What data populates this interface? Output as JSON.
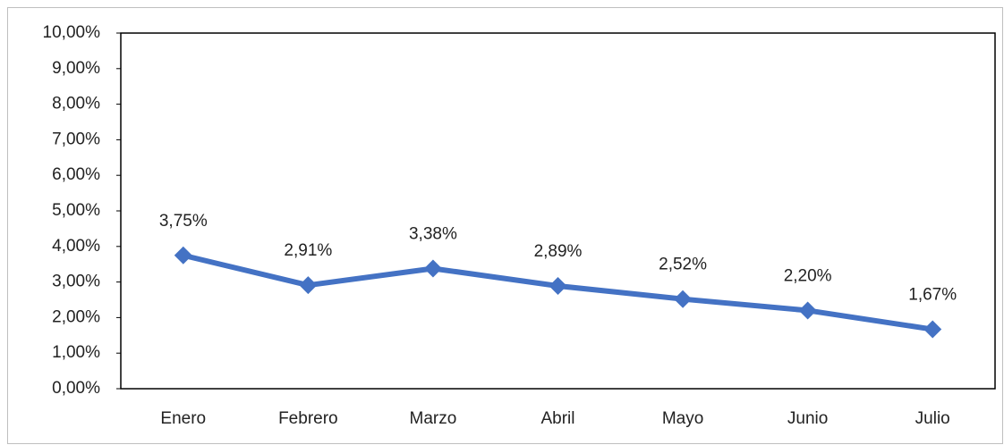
{
  "chart_data": {
    "type": "line",
    "categories": [
      "Enero",
      "Febrero",
      "Marzo",
      "Abril",
      "Mayo",
      "Junio",
      "Julio"
    ],
    "values": [
      3.75,
      2.91,
      3.38,
      2.89,
      2.52,
      2.2,
      1.67
    ],
    "value_labels": [
      "3,75%",
      "2,91%",
      "3,38%",
      "2,89%",
      "2,52%",
      "2,20%",
      "1,67%"
    ],
    "color": "#4472c4",
    "ylim": [
      0,
      10
    ],
    "yticks": [
      {
        "value": 0,
        "label": "0,00%"
      },
      {
        "value": 1,
        "label": "1,00%"
      },
      {
        "value": 2,
        "label": "2,00%"
      },
      {
        "value": 3,
        "label": "3,00%"
      },
      {
        "value": 4,
        "label": "4,00%"
      },
      {
        "value": 5,
        "label": "5,00%"
      },
      {
        "value": 6,
        "label": "6,00%"
      },
      {
        "value": 7,
        "label": "7,00%"
      },
      {
        "value": 8,
        "label": "8,00%"
      },
      {
        "value": 9,
        "label": "9,00%"
      },
      {
        "value": 10,
        "label": "10,00%"
      }
    ]
  }
}
